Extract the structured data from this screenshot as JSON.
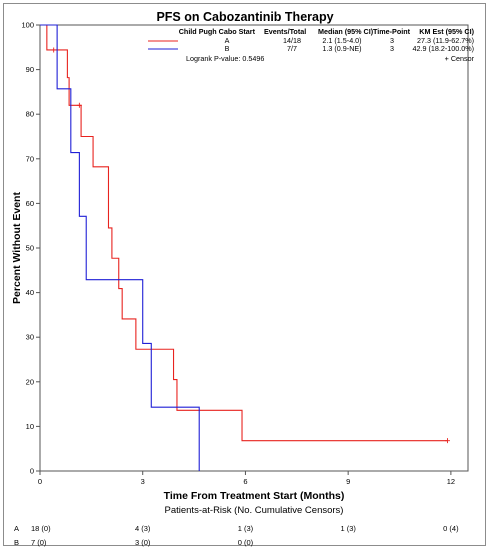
{
  "chart_data": {
    "type": "line",
    "title": "PFS on Cabozantinib Therapy",
    "xlabel": "Time From Treatment Start (Months)",
    "ylabel": "Percent Without Event",
    "xlim": [
      0,
      12.5
    ],
    "ylim": [
      0,
      100
    ],
    "xticks": [
      0,
      3,
      6,
      9,
      12
    ],
    "yticks": [
      0,
      10,
      20,
      30,
      40,
      50,
      60,
      70,
      80,
      90,
      100
    ],
    "grid": false,
    "legend_placement": "top-right",
    "colors": {
      "A": "#e8231f",
      "B": "#1f1fd6"
    },
    "legend_table": {
      "headers": [
        "Child Pugh Cabo Start",
        "Events/Total",
        "Median (95% CI)",
        "Time-Point",
        "KM Est (95% CI)"
      ],
      "rows": [
        [
          "A",
          "14/18",
          "2.1 (1.5-4.0)",
          "3",
          "27.3 (11.9-62.7%)"
        ],
        [
          "B",
          "7/7",
          "1.3 (0.9-NE)",
          "3",
          "42.9 (18.2-100.0%)"
        ]
      ],
      "logrank": "Logrank P-value: 0.5496",
      "censor_label": "+ Censor"
    },
    "series": [
      {
        "name": "A",
        "steps": [
          [
            0,
            100
          ],
          [
            0.2,
            94.4
          ],
          [
            0.8,
            88.2
          ],
          [
            0.85,
            82.0
          ],
          [
            1.2,
            75.0
          ],
          [
            1.55,
            68.2
          ],
          [
            2.0,
            54.5
          ],
          [
            2.1,
            47.7
          ],
          [
            2.3,
            40.9
          ],
          [
            2.4,
            34.1
          ],
          [
            2.8,
            27.3
          ],
          [
            3.9,
            20.5
          ],
          [
            4.0,
            13.6
          ],
          [
            5.9,
            6.8
          ]
        ],
        "end": 11.9,
        "censors": [
          [
            0.4,
            94.4
          ],
          [
            1.15,
            82.0
          ],
          [
            11.9,
            6.8
          ]
        ]
      },
      {
        "name": "B",
        "steps": [
          [
            0,
            100
          ],
          [
            0.5,
            85.7
          ],
          [
            0.9,
            71.4
          ],
          [
            1.15,
            57.1
          ],
          [
            1.35,
            42.9
          ],
          [
            3.0,
            28.6
          ],
          [
            3.25,
            14.3
          ],
          [
            4.65,
            0
          ]
        ],
        "end": 4.65,
        "censors": []
      }
    ],
    "risk_table": {
      "title": "Patients-at-Risk (No. Cumulative Censors)",
      "rows": [
        {
          "group": "A",
          "cells": [
            {
              "x": 0,
              "text": "18 (0)"
            },
            {
              "x": 3,
              "text": "4 (3)"
            },
            {
              "x": 6,
              "text": "1 (3)"
            },
            {
              "x": 9,
              "text": "1 (3)"
            },
            {
              "x": 12,
              "text": "0 (4)"
            }
          ]
        },
        {
          "group": "B",
          "cells": [
            {
              "x": 0,
              "text": "7 (0)"
            },
            {
              "x": 3,
              "text": "3 (0)"
            },
            {
              "x": 6,
              "text": "0 (0)"
            }
          ]
        }
      ]
    }
  }
}
